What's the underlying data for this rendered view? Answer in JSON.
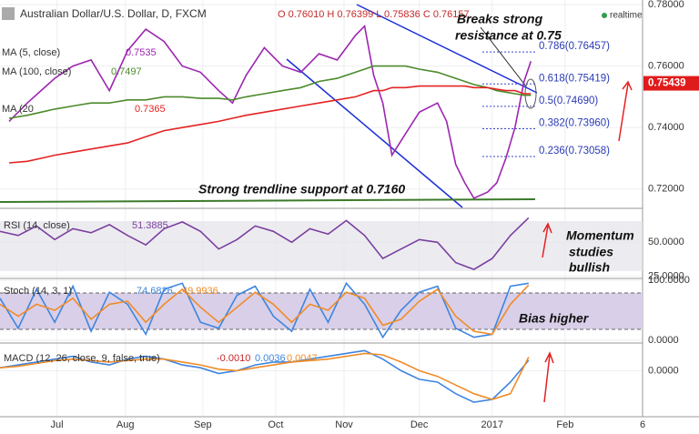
{
  "chart_data": [
    {
      "type": "line",
      "title": "Australian Dollar/U.S. Dollar, D, FXCM",
      "ohlc": "O 0.76010 H 0.76399 L 0.75836 C 0.76157",
      "realtime": "realtime",
      "annotations": [
        "Breaks strong",
        "resistance at 0.75",
        "Strong trendline support at 0.7160"
      ],
      "xlim": [
        0,
        282
      ],
      "ylim": [
        0.714,
        0.7815
      ],
      "yticks": [
        {
          "value": 0.72,
          "label": "0.72000"
        },
        {
          "value": 0.74,
          "label": "0.74000"
        },
        {
          "value": 0.76,
          "label": "0.76000"
        },
        {
          "value": 0.78,
          "label": "0.78000"
        }
      ],
      "price_tag": 0.75439,
      "fib_levels": [
        {
          "value": 0.76457,
          "label": "0.786(0.76457)"
        },
        {
          "value": 0.75419,
          "label": "0.618(0.75419)"
        },
        {
          "value": 0.7469,
          "label": "0.5(0.74690)"
        },
        {
          "value": 0.7396,
          "label": "0.382(0.73960)"
        },
        {
          "value": 0.73058,
          "label": "0.236(0.73058)"
        }
      ],
      "x": [
        4,
        12,
        18,
        24,
        32,
        40,
        48,
        56,
        64,
        72,
        80,
        88,
        96,
        102,
        108,
        116,
        124,
        132,
        140,
        148,
        156,
        160,
        164,
        168,
        172,
        178,
        184,
        192,
        196,
        200,
        204,
        208,
        214,
        218,
        222,
        226,
        230,
        233
      ],
      "series": [
        {
          "name": "MA (5, close)",
          "label": "0.7535",
          "color": "#9c27b0",
          "values": [
            0.742,
            0.748,
            0.752,
            0.756,
            0.76,
            0.762,
            0.752,
            0.765,
            0.772,
            0.768,
            0.76,
            0.758,
            0.752,
            0.748,
            0.757,
            0.766,
            0.76,
            0.758,
            0.764,
            0.762,
            0.77,
            0.773,
            0.757,
            0.748,
            0.731,
            0.738,
            0.745,
            0.748,
            0.742,
            0.728,
            0.722,
            0.717,
            0.719,
            0.722,
            0.73,
            0.74,
            0.755,
            0.7616
          ]
        },
        {
          "name": "MA (100, close)",
          "label": "0.7497",
          "color": "#4c8a2c",
          "values": [
            0.743,
            0.744,
            0.745,
            0.746,
            0.747,
            0.748,
            0.748,
            0.749,
            0.749,
            0.75,
            0.75,
            0.7495,
            0.7495,
            0.749,
            0.75,
            0.751,
            0.752,
            0.753,
            0.755,
            0.756,
            0.758,
            0.759,
            0.76,
            0.76,
            0.76,
            0.76,
            0.759,
            0.758,
            0.757,
            0.756,
            0.755,
            0.754,
            0.753,
            0.752,
            0.7515,
            0.751,
            0.7505,
            0.7505
          ]
        },
        {
          "name": "MA (20",
          "label": "0.7365",
          "color": "#e52222",
          "values": [
            0.7285,
            0.729,
            0.73,
            0.731,
            0.732,
            0.733,
            0.734,
            0.735,
            0.737,
            0.739,
            0.74,
            0.741,
            0.742,
            0.743,
            0.744,
            0.745,
            0.746,
            0.747,
            0.748,
            0.749,
            0.75,
            0.751,
            0.752,
            0.752,
            0.753,
            0.753,
            0.7535,
            0.7535,
            0.7535,
            0.7535,
            0.7535,
            0.753,
            0.753,
            0.7525,
            0.752,
            0.752,
            0.751,
            0.751
          ]
        }
      ]
    },
    {
      "type": "line",
      "title": "RSI (14, close)",
      "annotations": [
        "Momentum",
        "studies",
        "bullish"
      ],
      "xlim": [
        0,
        282
      ],
      "ylim": [
        24,
        73
      ],
      "yticks": [
        {
          "value": 50,
          "label": "50.0000"
        },
        {
          "value": 25,
          "label": "25.0000"
        }
      ],
      "x": [
        0,
        8,
        16,
        24,
        32,
        40,
        48,
        56,
        64,
        72,
        80,
        88,
        96,
        104,
        112,
        120,
        128,
        136,
        144,
        152,
        160,
        168,
        176,
        184,
        192,
        200,
        208,
        216,
        224,
        232
      ],
      "series": [
        {
          "name": "RSI (14, close)",
          "label": "51.3885",
          "color": "#7b3fa0",
          "values": [
            58,
            55,
            62,
            52,
            60,
            57,
            63,
            55,
            48,
            60,
            65,
            58,
            45,
            52,
            62,
            58,
            50,
            60,
            56,
            66,
            55,
            38,
            45,
            52,
            50,
            35,
            30,
            38,
            55,
            68
          ]
        }
      ]
    },
    {
      "type": "line",
      "title": "Stoch (14, 3, 1)",
      "annotations": [
        "Bias higher"
      ],
      "xlim": [
        0,
        282
      ],
      "ylim": [
        -3,
        100
      ],
      "yticks": [
        {
          "value": 100,
          "label": "100.0000"
        },
        {
          "value": 0,
          "label": "0.0000"
        }
      ],
      "x": [
        0,
        8,
        16,
        24,
        32,
        40,
        48,
        56,
        64,
        72,
        80,
        88,
        96,
        104,
        112,
        120,
        128,
        136,
        144,
        152,
        160,
        168,
        176,
        184,
        192,
        200,
        208,
        216,
        224,
        232
      ],
      "series": [
        {
          "label": "74.6826",
          "color": "#3d85e0",
          "values": [
            70,
            20,
            85,
            30,
            90,
            15,
            80,
            60,
            10,
            85,
            95,
            30,
            20,
            75,
            90,
            40,
            15,
            85,
            30,
            95,
            60,
            5,
            50,
            80,
            90,
            20,
            5,
            10,
            90,
            95
          ]
        },
        {
          "label": "49.9936",
          "color": "#f08c28",
          "values": [
            60,
            40,
            60,
            50,
            70,
            35,
            60,
            65,
            30,
            60,
            85,
            55,
            30,
            55,
            80,
            60,
            30,
            60,
            50,
            80,
            70,
            25,
            35,
            65,
            85,
            40,
            15,
            10,
            60,
            92
          ]
        }
      ]
    },
    {
      "type": "line",
      "title": "MACD (12, 26, close, 9, false, true)",
      "xlim": [
        0,
        282
      ],
      "ylim": [
        -0.0157,
        0.0093
      ],
      "yticks": [
        {
          "value": 0,
          "label": "0.0000"
        }
      ],
      "xticks": [
        {
          "value": 25,
          "label": "Jul"
        },
        {
          "value": 55,
          "label": "Aug"
        },
        {
          "value": 89,
          "label": "Sep"
        },
        {
          "value": 121,
          "label": "Oct"
        },
        {
          "value": 151,
          "label": "Nov"
        },
        {
          "value": 184,
          "label": "Dec"
        },
        {
          "value": 216,
          "label": "2017"
        },
        {
          "value": 248,
          "label": "Feb"
        },
        {
          "value": 282,
          "label": "6"
        }
      ],
      "x": [
        0,
        8,
        16,
        24,
        32,
        40,
        48,
        56,
        64,
        72,
        80,
        88,
        96,
        104,
        112,
        120,
        128,
        136,
        144,
        152,
        160,
        168,
        176,
        184,
        192,
        200,
        208,
        216,
        224,
        232
      ],
      "series": [
        {
          "label": "-0.0010",
          "color": "#3d85e0",
          "values": [
            0.001,
            0.002,
            0.003,
            0.004,
            0.005,
            0.003,
            0.002,
            0.004,
            0.005,
            0.004,
            0.002,
            0.001,
            -0.001,
            0,
            0.002,
            0.003,
            0.003,
            0.004,
            0.005,
            0.006,
            0.007,
            0.004,
            0,
            -0.003,
            -0.004,
            -0.008,
            -0.011,
            -0.01,
            -0.004,
            0.0036
          ]
        },
        {
          "label": "0.0036",
          "color": "#f08c28",
          "values": [
            0.001,
            0.0015,
            0.0025,
            0.0035,
            0.004,
            0.0035,
            0.003,
            0.0035,
            0.004,
            0.004,
            0.003,
            0.002,
            0.0005,
            0,
            0.001,
            0.002,
            0.003,
            0.0035,
            0.004,
            0.005,
            0.006,
            0.0055,
            0.003,
            0,
            -0.002,
            -0.005,
            -0.008,
            -0.01,
            -0.008,
            0.0047
          ]
        }
      ],
      "hist_label": "0.0047"
    }
  ]
}
